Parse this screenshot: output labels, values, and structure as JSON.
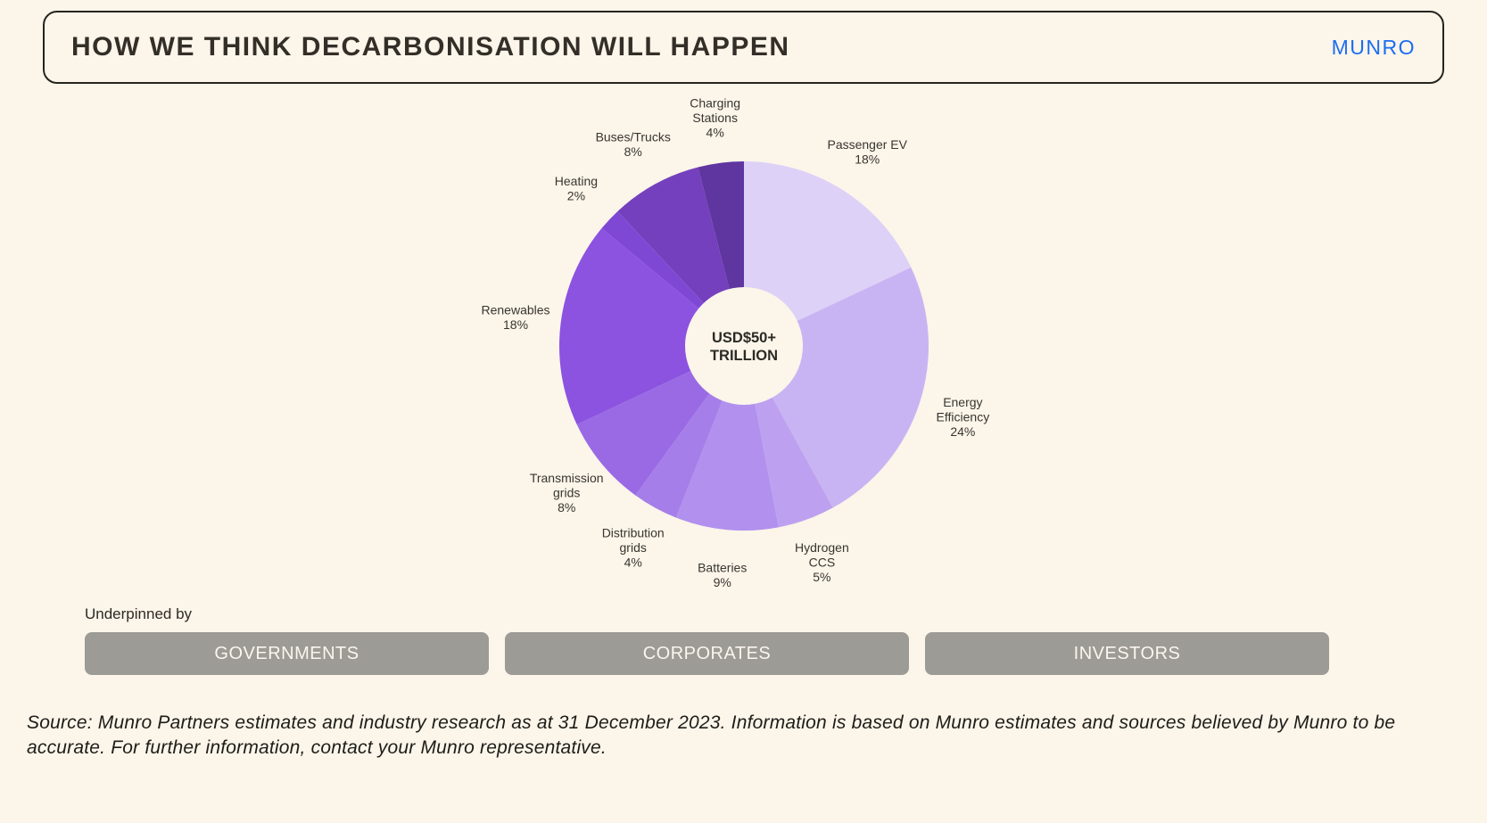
{
  "header": {
    "title": "HOW WE THINK DECARBONISATION WILL HAPPEN",
    "brand": "MUNRO",
    "brand_color": "#1b6ef2"
  },
  "chart_data": {
    "type": "pie",
    "donut": true,
    "start_angle_deg": 0,
    "direction": "clockwise",
    "center_label_lines": [
      "USD$50+",
      "TRILLION"
    ],
    "segments": [
      {
        "id": "passenger-ev",
        "label": "Passenger EV",
        "label_lines": [
          "Passenger EV"
        ],
        "pct": "18%",
        "value": 18,
        "color": "#ddd1f7"
      },
      {
        "id": "energy-efficiency",
        "label": "Energy Efficiency",
        "label_lines": [
          "Energy",
          "Efficiency"
        ],
        "pct": "24%",
        "value": 24,
        "color": "#c9b4f3"
      },
      {
        "id": "hydrogen-ccs",
        "label": "Hydrogen CCS",
        "label_lines": [
          "Hydrogen",
          "CCS"
        ],
        "pct": "5%",
        "value": 5,
        "color": "#bda1f0"
      },
      {
        "id": "batteries",
        "label": "Batteries",
        "label_lines": [
          "Batteries"
        ],
        "pct": "9%",
        "value": 9,
        "color": "#b190ee"
      },
      {
        "id": "distribution-grids",
        "label": "Distribution grids",
        "label_lines": [
          "Distribution",
          "grids"
        ],
        "pct": "4%",
        "value": 4,
        "color": "#a67ee9"
      },
      {
        "id": "transmission-grids",
        "label": "Transmission grids",
        "label_lines": [
          "Transmission",
          "grids"
        ],
        "pct": "8%",
        "value": 8,
        "color": "#9a6ae5"
      },
      {
        "id": "renewables",
        "label": "Renewables",
        "label_lines": [
          "Renewables"
        ],
        "pct": "18%",
        "value": 18,
        "color": "#8c52e0"
      },
      {
        "id": "heating",
        "label": "Heating",
        "label_lines": [
          "Heating"
        ],
        "pct": "2%",
        "value": 2,
        "color": "#7f48d4"
      },
      {
        "id": "buses-trucks",
        "label": "Buses/Trucks",
        "label_lines": [
          "Buses/Trucks"
        ],
        "pct": "8%",
        "value": 8,
        "color": "#7440bd"
      },
      {
        "id": "charging-stations",
        "label": "Charging Stations",
        "label_lines": [
          "Charging",
          "Stations"
        ],
        "pct": "4%",
        "value": 4,
        "color": "#5f35a0"
      }
    ]
  },
  "underpinned": {
    "label": "Underpinned by",
    "pillars": [
      "GOVERNMENTS",
      "CORPORATES",
      "INVESTORS"
    ]
  },
  "footer": {
    "source": "Source: Munro Partners estimates and industry research as at 31 December 2023. Information is based on Munro estimates and sources believed by Munro to be accurate. For further information, contact your Munro representative."
  }
}
